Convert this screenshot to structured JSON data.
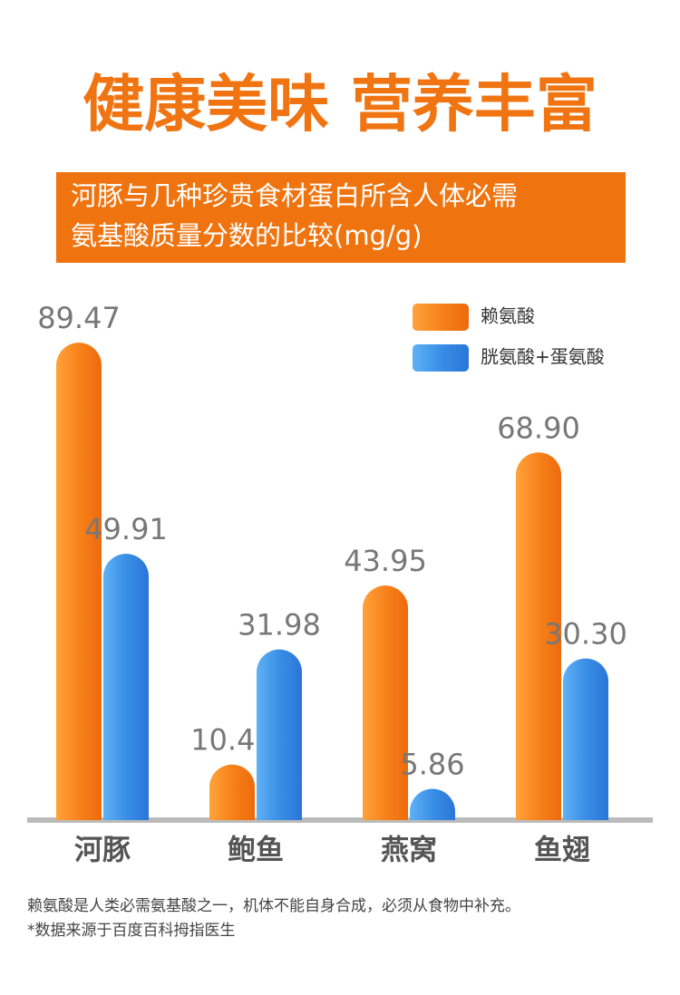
{
  "chart_data": {
    "type": "bar",
    "title": "健康美味 营养丰富",
    "subtitle": [
      "河豚与几种珍贵食材蛋白所含人体必需",
      "氨基酸质量分数的比较(mg/g)"
    ],
    "categories": [
      "河豚",
      "鲍鱼",
      "燕窝",
      "鱼翅"
    ],
    "series": [
      {
        "name": "赖氨酸",
        "color": "#f7821b",
        "values": [
          89.47,
          10.41,
          43.95,
          68.9
        ],
        "value_labels": [
          "89.47",
          "10.41",
          "43.95",
          "68.90"
        ]
      },
      {
        "name": "胱氨酸+蛋氨酸",
        "color": "#3a8ee6",
        "values": [
          49.91,
          31.98,
          5.86,
          30.3
        ],
        "value_labels": [
          "49.91",
          "31.98",
          "5.86",
          "30.30"
        ]
      }
    ],
    "ylim": [
      0,
      90
    ],
    "legend": "top-right",
    "notes": [
      "赖氨酸是人类必需氨基酸之一，机体不能自身合成，必须从食物中补充。",
      "*数据来源于百度百科拇指医生"
    ]
  }
}
